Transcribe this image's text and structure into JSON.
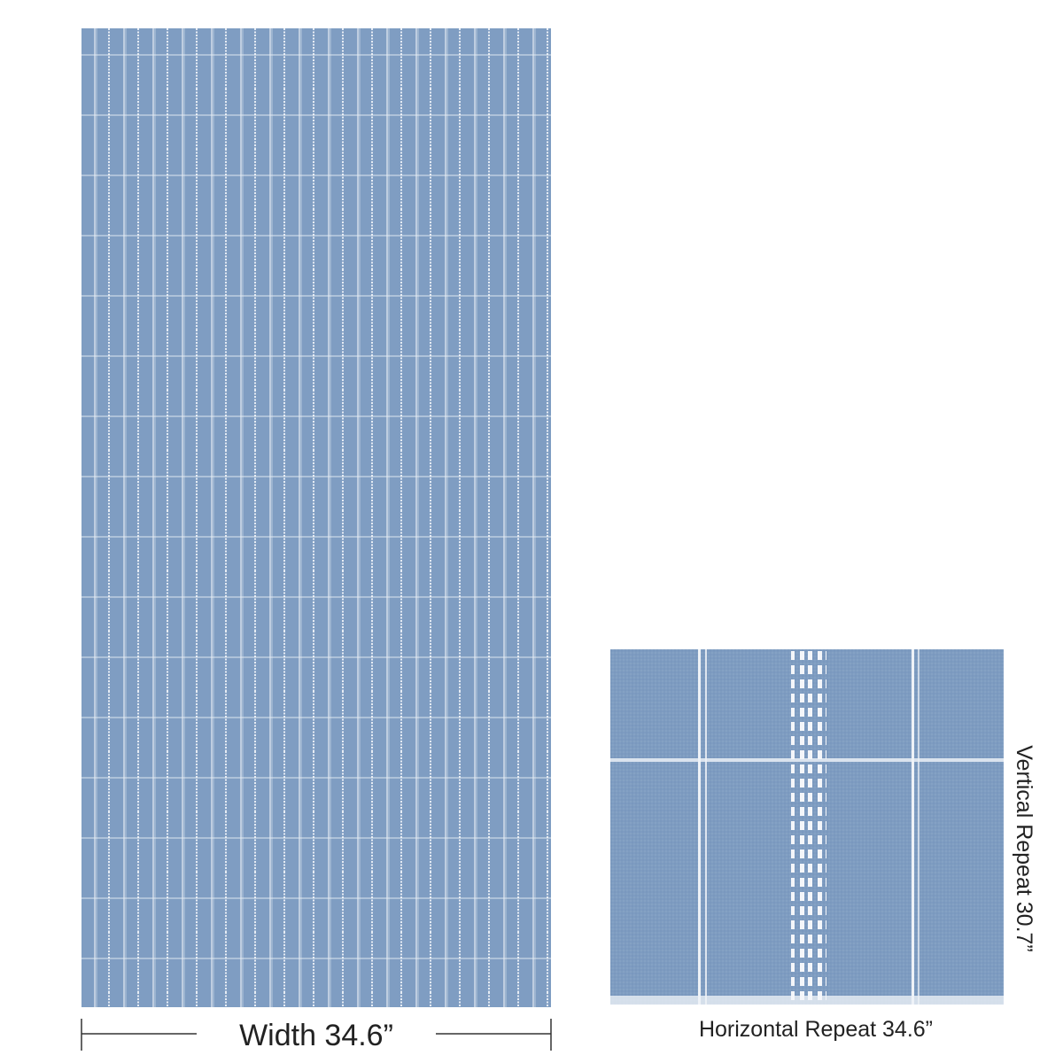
{
  "panel": {
    "width_label": "Width 34.6”"
  },
  "swatch": {
    "horizontal_label": "Horizontal Repeat 34.6”",
    "vertical_label": "Vertical Repeat 30.7”"
  }
}
